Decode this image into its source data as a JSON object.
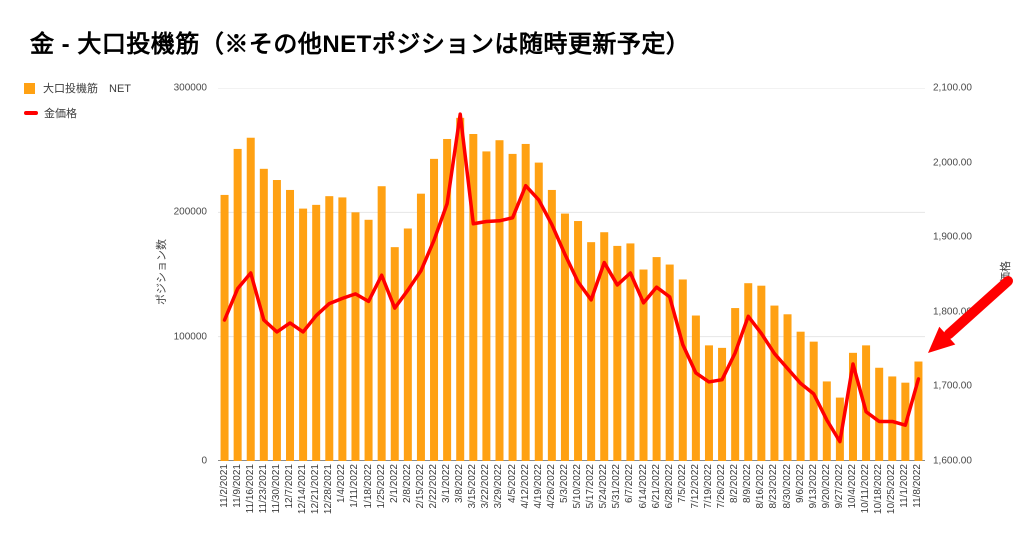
{
  "title": "金 - 大口投機筋（※その他NETポジションは随時更新予定）",
  "legend": {
    "bars_label": "大口投機筋　NET",
    "line_label": "金価格"
  },
  "axes": {
    "left": {
      "title": "ポジション数",
      "tick_labels": [
        "300000",
        "200000",
        "100000",
        "0"
      ],
      "tick_values": [
        300000,
        200000,
        100000,
        0
      ]
    },
    "right": {
      "title": "価格",
      "tick_labels": [
        "2,100.00",
        "2,000.00",
        "1,900.00",
        "1,800.00",
        "1,700.00",
        "1,600.00"
      ],
      "tick_values": [
        2100,
        2000,
        1900,
        1800,
        1700,
        1600
      ]
    }
  },
  "colors": {
    "bars": "#FFA113",
    "line": "#FF0000",
    "arrow": "#FF0000",
    "grid": "#e6e6e6",
    "axis_line": "#8a8a8a"
  },
  "chart_data": {
    "type": "bar",
    "title": "金 - 大口投機筋（※その他NETポジションは随時更新予定）",
    "grid": true,
    "legend_position": "top-left",
    "left_ylabel": "ポジション数",
    "right_ylabel": "価格",
    "left_ylim": [
      0,
      300000
    ],
    "right_ylim": [
      1600,
      2100
    ],
    "categories": [
      "11/2/2021",
      "11/9/2021",
      "11/16/2021",
      "11/23/2021",
      "11/30/2021",
      "12/7/2021",
      "12/14/2021",
      "12/21/2021",
      "12/28/2021",
      "1/4/2022",
      "1/11/2022",
      "1/18/2022",
      "1/25/2022",
      "2/1/2022",
      "2/8/2022",
      "2/15/2022",
      "2/22/2022",
      "3/1/2022",
      "3/8/2022",
      "3/15/2022",
      "3/22/2022",
      "3/29/2022",
      "4/5/2022",
      "4/12/2022",
      "4/19/2022",
      "4/26/2022",
      "5/3/2022",
      "5/10/2022",
      "5/17/2022",
      "5/24/2022",
      "5/31/2022",
      "6/7/2022",
      "6/14/2022",
      "6/21/2022",
      "6/28/2022",
      "7/5/2022",
      "7/12/2022",
      "7/19/2022",
      "7/26/2022",
      "8/2/2022",
      "8/9/2022",
      "8/16/2022",
      "8/23/2022",
      "8/30/2022",
      "9/6/2022",
      "9/13/2022",
      "9/20/2022",
      "9/27/2022",
      "10/4/2022",
      "10/11/2022",
      "10/18/2022",
      "10/25/2022",
      "11/1/2022",
      "11/8/2022"
    ],
    "series": [
      {
        "name": "大口投機筋 NET",
        "type": "bar",
        "axis": "left",
        "color": "#FFA113",
        "values": [
          214000,
          251000,
          260000,
          235000,
          226000,
          218000,
          203000,
          206000,
          213000,
          212000,
          200000,
          194000,
          221000,
          172000,
          187000,
          215000,
          243000,
          259000,
          276000,
          263000,
          249000,
          258000,
          247000,
          255000,
          240000,
          218000,
          199000,
          193000,
          176000,
          184000,
          173000,
          175000,
          154000,
          164000,
          158000,
          146000,
          117000,
          93000,
          91000,
          123000,
          143000,
          141000,
          125000,
          118000,
          104000,
          96000,
          64000,
          51000,
          87000,
          93000,
          75000,
          68000,
          63000,
          80000
        ]
      },
      {
        "name": "金価格",
        "type": "line",
        "axis": "right",
        "color": "#FF0000",
        "values": [
          1789,
          1831,
          1852,
          1789,
          1773,
          1785,
          1773,
          1795,
          1811,
          1818,
          1824,
          1814,
          1849,
          1805,
          1829,
          1855,
          1896,
          1945,
          2065,
          1918,
          1921,
          1922,
          1926,
          1969,
          1950,
          1917,
          1877,
          1840,
          1816,
          1866,
          1836,
          1852,
          1812,
          1833,
          1820,
          1756,
          1718,
          1706,
          1709,
          1745,
          1794,
          1771,
          1744,
          1724,
          1704,
          1690,
          1655,
          1626,
          1730,
          1666,
          1653,
          1653,
          1648,
          1710
        ]
      }
    ],
    "annotations": [
      {
        "type": "arrow",
        "color": "#FF0000",
        "points_at": "11/8/2022"
      }
    ]
  }
}
